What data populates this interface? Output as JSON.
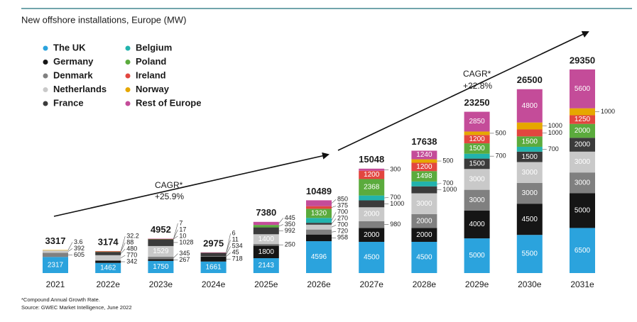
{
  "chart_data": {
    "type": "bar",
    "stacked": true,
    "title": "New offshore installations, Europe (MW)",
    "categories": [
      "2021",
      "2022e",
      "2023e",
      "2024e",
      "2025e",
      "2026e",
      "2027e",
      "2028e",
      "2029e",
      "2030e",
      "2031e"
    ],
    "totals": [
      3317,
      3174,
      4952,
      2975,
      7380,
      10489,
      15048,
      17638,
      23250,
      26500,
      29350
    ],
    "series": [
      {
        "name": "The UK",
        "color": "#2ba3dd",
        "values": [
          2317,
          1462,
          1750,
          1661,
          2143,
          4596,
          4500,
          4500,
          5000,
          5500,
          6500
        ]
      },
      {
        "name": "Germany",
        "color": "#151515",
        "values": [
          null,
          342,
          267,
          718,
          1800,
          958,
          2000,
          2000,
          4000,
          4500,
          5000
        ]
      },
      {
        "name": "Denmark",
        "color": "#808080",
        "values": [
          605,
          null,
          345,
          45,
          250,
          720,
          980,
          2000,
          3000,
          3000,
          3000
        ]
      },
      {
        "name": "Netherlands",
        "color": "#c9c9c9",
        "values": [
          392,
          770,
          1529,
          null,
          1400,
          700,
          2000,
          3000,
          3000,
          3000,
          3000
        ]
      },
      {
        "name": "France",
        "color": "#3b3b3b",
        "values": [
          null,
          480,
          1028,
          534,
          992,
          270,
          1000,
          1000,
          1500,
          1500,
          2000
        ]
      },
      {
        "name": "Belgium",
        "color": "#22b3ad",
        "values": [
          null,
          null,
          null,
          null,
          null,
          700,
          700,
          700,
          700,
          700,
          null
        ]
      },
      {
        "name": "Poland",
        "color": "#5bab3d",
        "values": [
          null,
          null,
          10,
          null,
          350,
          1320,
          2368,
          1498,
          1500,
          1500,
          2000
        ]
      },
      {
        "name": "Ireland",
        "color": "#e2463f",
        "values": [
          null,
          null,
          null,
          null,
          null,
          375,
          1200,
          1200,
          1200,
          1000,
          1250
        ]
      },
      {
        "name": "Norway",
        "color": "#e6a700",
        "values": [
          3.6,
          88,
          17,
          11,
          null,
          null,
          null,
          500,
          500,
          1000,
          1000
        ]
      },
      {
        "name": "Rest of Europe",
        "color": "#c44c99",
        "values": [
          null,
          32.2,
          7,
          6,
          445,
          850,
          300,
          1240,
          2850,
          4800,
          5600
        ]
      }
    ],
    "annotations": [
      {
        "lines": [
          "CAGR*",
          "+25.9%"
        ]
      },
      {
        "lines": [
          "CAGR*",
          "+22.8%"
        ]
      }
    ],
    "footnotes": [
      "*Compound Annual Growth Rate.",
      "Source: GWEC Market Intelligence, June 2022"
    ]
  }
}
